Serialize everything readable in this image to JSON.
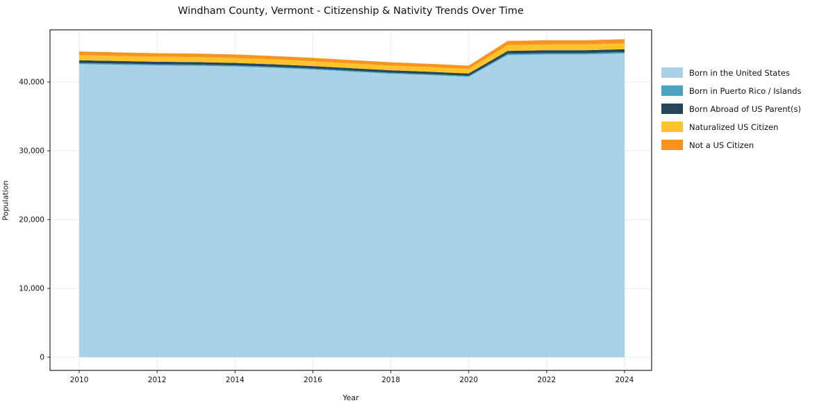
{
  "page": {
    "title": "Windham County, Vermont - Citizenship & Nativity Trends Over Time"
  },
  "chart_data": {
    "type": "area",
    "stacked": true,
    "title": "Windham County, Vermont - Citizenship & Nativity Trends Over Time",
    "xlabel": "Year",
    "ylabel": "Population",
    "x": [
      2010,
      2011,
      2012,
      2013,
      2014,
      2015,
      2016,
      2017,
      2018,
      2019,
      2020,
      2021,
      2022,
      2023,
      2024
    ],
    "series": [
      {
        "name": "Born in the United States",
        "color": "#a8d3e6",
        "values": [
          42600,
          42500,
          42400,
          42350,
          42250,
          42050,
          41800,
          41500,
          41200,
          41000,
          40750,
          43900,
          44000,
          44000,
          44150
        ]
      },
      {
        "name": "Born in Puerto Rico / Islands",
        "color": "#4aa2c0",
        "values": [
          180,
          175,
          170,
          170,
          165,
          160,
          160,
          155,
          155,
          150,
          150,
          200,
          200,
          200,
          200
        ]
      },
      {
        "name": "Born Abroad of US Parent(s)",
        "color": "#26475a",
        "values": [
          380,
          375,
          370,
          370,
          365,
          360,
          355,
          350,
          345,
          340,
          340,
          420,
          420,
          420,
          420
        ]
      },
      {
        "name": "Naturalized US Citizen",
        "color": "#fcc32b",
        "values": [
          750,
          740,
          730,
          730,
          720,
          710,
          700,
          690,
          680,
          670,
          660,
          850,
          850,
          850,
          850
        ]
      },
      {
        "name": "Not a US Citizen",
        "color": "#f79420",
        "values": [
          520,
          515,
          510,
          510,
          505,
          500,
          495,
          490,
          485,
          480,
          475,
          600,
          600,
          600,
          600
        ]
      }
    ],
    "xticks": [
      2010,
      2012,
      2014,
      2016,
      2018,
      2020,
      2022,
      2024
    ],
    "yticks": [
      0,
      10000,
      20000,
      30000,
      40000
    ],
    "ytick_labels": [
      "0",
      "10,000",
      "20,000",
      "30,000",
      "40,000"
    ],
    "ylim": [
      0,
      47500
    ],
    "grid": true,
    "legend_position": "right"
  }
}
